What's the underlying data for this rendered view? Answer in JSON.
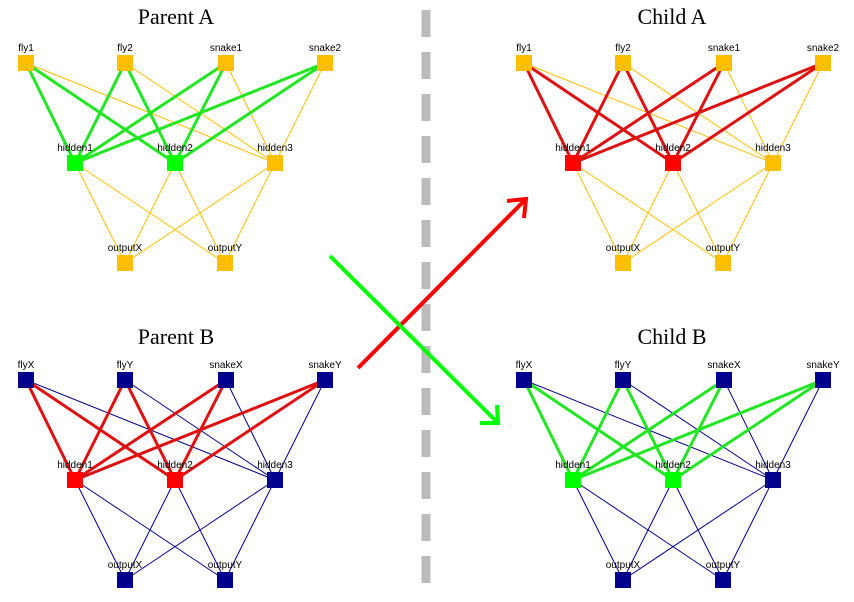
{
  "colors": {
    "parent_a": "#FFBF00",
    "parent_b": "#00008C",
    "crossover_red": "#FF0000",
    "crossover_green": "#00FF00",
    "divider": "#BBBBBB"
  },
  "networks": [
    {
      "id": "parent-a",
      "title": "Parent A",
      "base_color": "#FFBF00",
      "highlight_color": "#22E622",
      "hidden_fill_color": "#00FF00",
      "labels": {
        "inputs": [
          "fly1",
          "fly2",
          "snake1",
          "snake2"
        ],
        "hidden": [
          "hidden1",
          "hidden2",
          "hidden3"
        ],
        "outputs": [
          "outputX",
          "outputY"
        ]
      }
    },
    {
      "id": "parent-b",
      "title": "Parent B",
      "base_color": "#00008C",
      "highlight_color": "#DD1111",
      "hidden_fill_color": "#FF0000",
      "labels": {
        "inputs": [
          "flyX",
          "flyY",
          "snakeX",
          "snakeY"
        ],
        "hidden": [
          "hidden1",
          "hidden2",
          "hidden3"
        ],
        "outputs": [
          "outputX",
          "outputY"
        ]
      }
    },
    {
      "id": "child-a",
      "title": "Child A",
      "base_color": "#FFBF00",
      "highlight_color": "#DD1111",
      "hidden_fill_color": "#FF0000",
      "labels": {
        "inputs": [
          "fly1",
          "fly2",
          "snake1",
          "snake2"
        ],
        "hidden": [
          "hidden1",
          "hidden2",
          "hidden3"
        ],
        "outputs": [
          "outputX",
          "outputY"
        ]
      }
    },
    {
      "id": "child-b",
      "title": "Child B",
      "base_color": "#00008C",
      "highlight_color": "#22E622",
      "hidden_fill_color": "#00FF00",
      "labels": {
        "inputs": [
          "flyX",
          "flyY",
          "snakeX",
          "snakeY"
        ],
        "hidden": [
          "hidden1",
          "hidden2",
          "hidden3"
        ],
        "outputs": [
          "outputX",
          "outputY"
        ]
      }
    }
  ]
}
